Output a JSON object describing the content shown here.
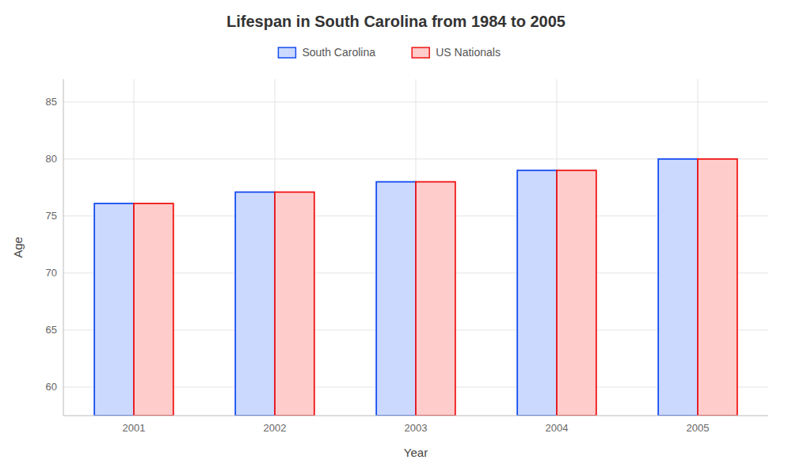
{
  "chart_data": {
    "type": "bar",
    "title": "Lifespan in South Carolina from 1984 to 2005",
    "x_label": "Year",
    "y_label": "Age",
    "categories": [
      "2001",
      "2002",
      "2003",
      "2004",
      "2005"
    ],
    "series": [
      {
        "name": "South Carolina",
        "color": "#ccd9ff",
        "values": [
          76.1,
          77.1,
          78.0,
          79.0,
          80.0
        ]
      },
      {
        "name": "US Nationals",
        "color": "#ffcccc",
        "values": [
          76.1,
          77.1,
          78.0,
          79.0,
          80.0
        ]
      }
    ],
    "ylim": [
      57.5,
      87
    ],
    "yticks": [
      60,
      65,
      70,
      75,
      80,
      85
    ],
    "grid": true,
    "legend": "top"
  }
}
